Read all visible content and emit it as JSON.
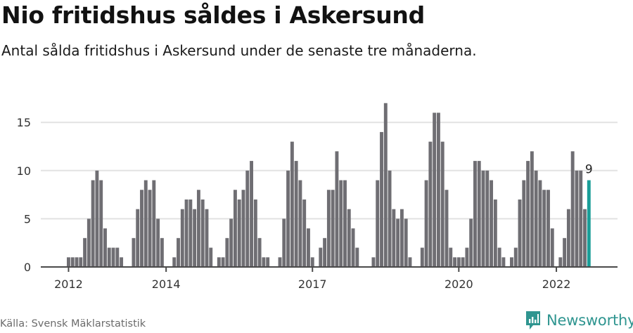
{
  "header": {
    "title": "Nio fritidshus såldes i Askersund",
    "subtitle": "Antal sålda fritidshus i Askersund under de senaste tre månaderna."
  },
  "footer": {
    "source": "Källa: Svensk Mäklarstatistik",
    "brand": "Newsworthy"
  },
  "colors": {
    "bar": "#6f6e73",
    "highlight": "#1a9e98",
    "grid": "#e2e2e2",
    "axis": "#4a4a4a",
    "brand": "#2f9590"
  },
  "chart_data": {
    "type": "bar",
    "title": "Nio fritidshus såldes i Askersund",
    "subtitle": "Antal sålda fritidshus i Askersund under de senaste tre månaderna.",
    "xlabel": "",
    "ylabel": "",
    "ylim": [
      0,
      17
    ],
    "yticks": [
      0,
      5,
      10,
      15
    ],
    "xticks": [
      "2012",
      "2014",
      "2017",
      "2020",
      "2022"
    ],
    "grid": true,
    "frequency": "monthly",
    "start": "2012-01",
    "end": "2022-09",
    "values": [
      1,
      1,
      1,
      1,
      3,
      5,
      9,
      10,
      9,
      4,
      2,
      2,
      2,
      1,
      0,
      0,
      3,
      6,
      8,
      9,
      8,
      9,
      5,
      3,
      0,
      0,
      1,
      3,
      6,
      7,
      7,
      6,
      8,
      7,
      6,
      2,
      0,
      1,
      1,
      3,
      5,
      8,
      7,
      8,
      10,
      11,
      7,
      3,
      1,
      1,
      0,
      0,
      1,
      5,
      10,
      13,
      11,
      9,
      7,
      4,
      1,
      0,
      2,
      3,
      8,
      8,
      12,
      9,
      9,
      6,
      4,
      2,
      0,
      0,
      0,
      1,
      9,
      14,
      17,
      10,
      6,
      5,
      6,
      5,
      1,
      0,
      0,
      2,
      9,
      13,
      16,
      16,
      13,
      8,
      2,
      1,
      1,
      1,
      2,
      5,
      11,
      11,
      10,
      10,
      9,
      7,
      2,
      1,
      0,
      1,
      2,
      7,
      9,
      11,
      12,
      10,
      9,
      8,
      8,
      4,
      0,
      1,
      3,
      6,
      12,
      10,
      10,
      6,
      9
    ],
    "highlight": {
      "index": 128,
      "label": "9",
      "value": 9
    }
  }
}
